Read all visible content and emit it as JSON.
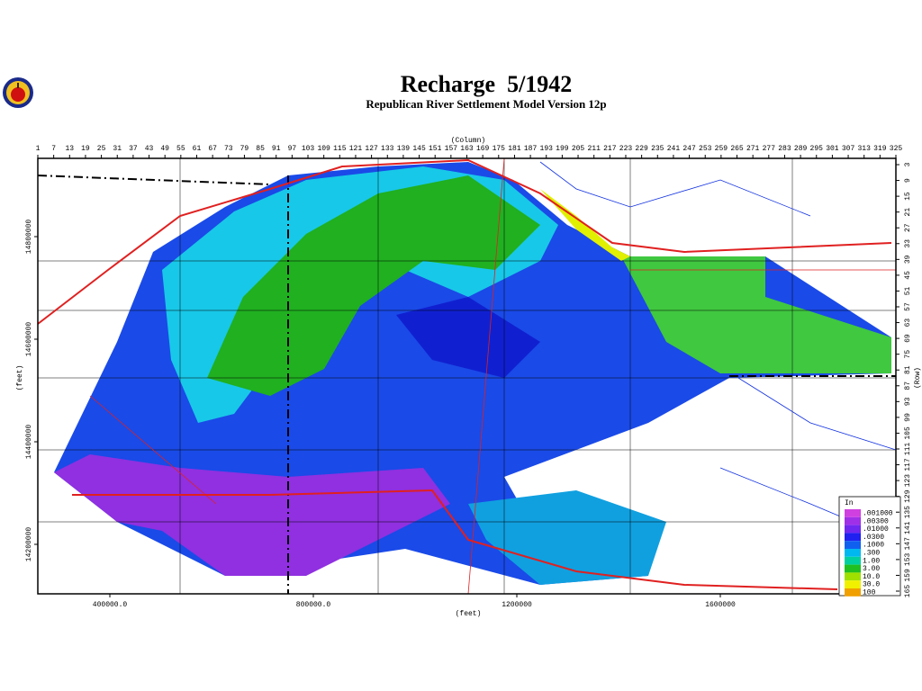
{
  "header": {
    "title": "Recharge  5/1942",
    "subtitle": "Republican River Settlement Model Version 12p"
  },
  "column_axis": {
    "label": "(Column)",
    "ticks": [
      1,
      7,
      13,
      19,
      25,
      31,
      37,
      43,
      49,
      55,
      61,
      67,
      73,
      79,
      85,
      91,
      97,
      103,
      109,
      115,
      121,
      127,
      133,
      139,
      145,
      151,
      157,
      163,
      169,
      175,
      181,
      187,
      193,
      199,
      205,
      211,
      217,
      223,
      229,
      235,
      241,
      247,
      253,
      259,
      265,
      271,
      277,
      283,
      289,
      295,
      301,
      307,
      313,
      319,
      325
    ]
  },
  "row_axis": {
    "label": "(Row)",
    "ticks": [
      3,
      9,
      15,
      21,
      27,
      33,
      39,
      45,
      51,
      57,
      63,
      69,
      75,
      81,
      87,
      93,
      99,
      105,
      111,
      117,
      123,
      129,
      135,
      141,
      147,
      153,
      159,
      165
    ]
  },
  "x_feet_axis": {
    "label": "(feet)",
    "ticks": [
      {
        "value": 400000,
        "label": "400000.0"
      },
      {
        "value": 800000,
        "label": "800000.0"
      },
      1200000,
      1600000
    ]
  },
  "y_feet_axis": {
    "label": "(feet)",
    "ticks": [
      14800000,
      14600000,
      14400000,
      14200000
    ]
  },
  "legend": {
    "title": "In",
    "items": [
      {
        "label": ".001000",
        "color": "#d040e0"
      },
      {
        "label": ".00300",
        "color": "#a030e8"
      },
      {
        "label": ".01000",
        "color": "#7028f0"
      },
      {
        "label": ".0300",
        "color": "#2020f0"
      },
      {
        "label": ".1000",
        "color": "#1060f0"
      },
      {
        "label": ".300",
        "color": "#00b8f0"
      },
      {
        "label": "1.00",
        "color": "#00d0a0"
      },
      {
        "label": "3.00",
        "color": "#20c020"
      },
      {
        "label": "10.0",
        "color": "#a0e000"
      },
      {
        "label": "30.0",
        "color": "#f0f000"
      },
      {
        "label": "100",
        "color": "#f0a000"
      }
    ]
  }
}
